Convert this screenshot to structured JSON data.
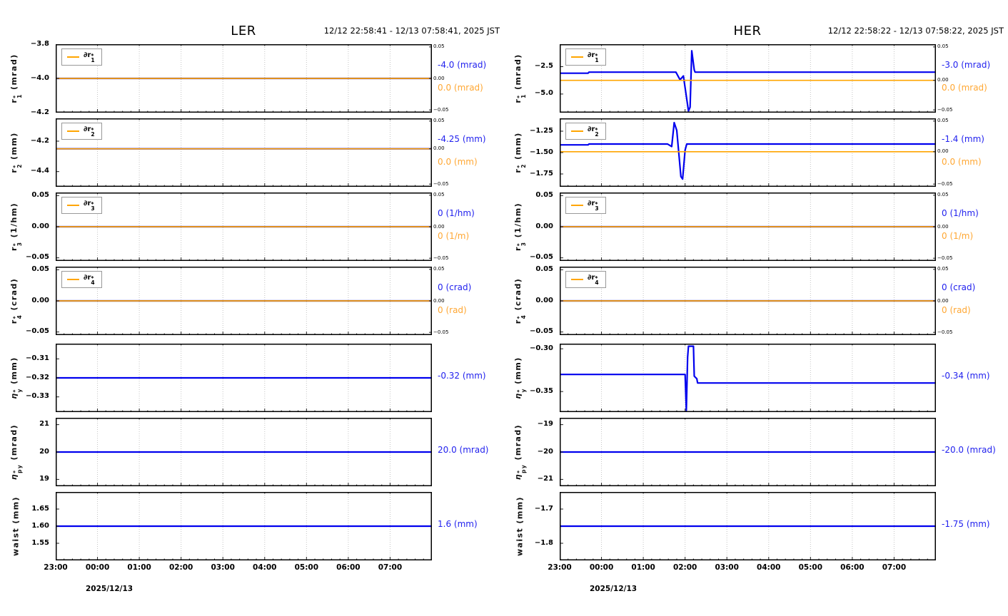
{
  "page": {
    "background": "#ffffff"
  },
  "colors": {
    "blue_line": "#0000ee",
    "orange_line": "#ffa500",
    "blue_label": "#2222ee",
    "orange_label": "#ffa733",
    "grid": "#c4c4c4",
    "frame": "#000000",
    "tick": "#222222"
  },
  "chart_data": [
    {
      "type": "line",
      "ring": "LER",
      "time_range": "12/12 22:58:41 - 12/13 07:58:41, 2025 JST",
      "date_label": "2025/12/13",
      "x_axis": {
        "hours_span": 9,
        "start_label": "23:00",
        "tick_labels": [
          "23:00",
          "00:00",
          "01:00",
          "02:00",
          "03:00",
          "04:00",
          "05:00",
          "06:00",
          "07:00"
        ],
        "minor_per_hour": 5,
        "grid": "vertical-dotted"
      },
      "panels": [
        {
          "id": "r1",
          "ylabel": [
            {
              "t": "r"
            },
            {
              "sup": "*",
              "sub": "1"
            },
            {
              "t": " (mrad)"
            }
          ],
          "legend": [
            {
              "t": "∂r"
            },
            {
              "sup": "*",
              "sub": "1"
            }
          ],
          "ylim": [
            -4.2,
            -3.8
          ],
          "yticks": [
            [
              "−3.8",
              -3.8
            ],
            [
              "−4.0",
              -4.0
            ],
            [
              "−4.2",
              -4.2
            ]
          ],
          "blue": [
            [
              0,
              -4.0
            ],
            [
              9,
              -4.0
            ]
          ],
          "orange_at": -4.0,
          "right_ticks": [
            "0.05",
            "0.00",
            "−0.05"
          ],
          "value_blue": "-4.0 (mrad)",
          "value_orange": "0.0 (mrad)"
        },
        {
          "id": "r2",
          "ylabel": [
            {
              "t": "r"
            },
            {
              "sup": "*",
              "sub": "2"
            },
            {
              "t": " (mm)"
            }
          ],
          "legend": [
            {
              "t": "∂r"
            },
            {
              "sup": "*",
              "sub": "2"
            }
          ],
          "ylim": [
            -4.5,
            -4.05
          ],
          "yticks": [
            [
              "−4.2",
              -4.2
            ],
            [
              "−4.4",
              -4.4
            ]
          ],
          "blue": [
            [
              0,
              -4.25
            ],
            [
              9,
              -4.25
            ]
          ],
          "orange_at": -4.25,
          "right_ticks": [
            "0.05",
            "0.00",
            "−0.05"
          ],
          "value_blue": "-4.25 (mm)",
          "value_orange": "0.0 (mm)"
        },
        {
          "id": "r3",
          "ylabel": [
            {
              "t": "r"
            },
            {
              "sup": "*",
              "sub": "3"
            },
            {
              "t": " (1/hm)"
            }
          ],
          "legend": [
            {
              "t": "∂r"
            },
            {
              "sup": "*",
              "sub": "3"
            }
          ],
          "ylim": [
            -0.055,
            0.055
          ],
          "yticks": [
            [
              "0.05",
              0.05
            ],
            [
              "0.00",
              0.0
            ],
            [
              "−0.05",
              -0.05
            ]
          ],
          "blue": [
            [
              0,
              0
            ],
            [
              9,
              0
            ]
          ],
          "orange_at": 0,
          "right_ticks": [
            "0.05",
            "0.00",
            "−0.05"
          ],
          "value_blue": "0 (1/hm)",
          "value_orange": "0 (1/m)"
        },
        {
          "id": "r4",
          "ylabel": [
            {
              "t": "r"
            },
            {
              "sup": "*",
              "sub": "4"
            },
            {
              "t": " (crad)"
            }
          ],
          "legend": [
            {
              "t": "∂r"
            },
            {
              "sup": "*",
              "sub": "4"
            }
          ],
          "ylim": [
            -0.055,
            0.055
          ],
          "yticks": [
            [
              "0.05",
              0.05
            ],
            [
              "0.00",
              0.0
            ],
            [
              "−0.05",
              -0.05
            ]
          ],
          "blue": [
            [
              0,
              0
            ],
            [
              9,
              0
            ]
          ],
          "orange_at": 0,
          "right_ticks": [
            "0.05",
            "0.00",
            "−0.05"
          ],
          "value_blue": "0 (crad)",
          "value_orange": "0 (rad)"
        },
        {
          "id": "etay",
          "ylabel": [
            {
              "t": "η",
              "i": true
            },
            {
              "sup": "*",
              "sub": "y"
            },
            {
              "t": " (mm)"
            }
          ],
          "legend": null,
          "ylim": [
            -0.338,
            -0.302
          ],
          "yticks": [
            [
              "−0.31",
              -0.31
            ],
            [
              "−0.32",
              -0.32
            ],
            [
              "−0.33",
              -0.33
            ]
          ],
          "blue": [
            [
              0,
              -0.32
            ],
            [
              9,
              -0.32
            ]
          ],
          "orange_at": null,
          "right_ticks": null,
          "value_blue": "-0.32 (mm)",
          "value_orange": null
        },
        {
          "id": "etapy",
          "ylabel": [
            {
              "t": "η",
              "i": true
            },
            {
              "sup": "*",
              "sub": "py"
            },
            {
              "t": " (mrad)"
            }
          ],
          "legend": null,
          "ylim": [
            18.75,
            21.25
          ],
          "yticks": [
            [
              "21",
              21
            ],
            [
              "20",
              20
            ],
            [
              "19",
              19
            ]
          ],
          "blue": [
            [
              0,
              20
            ],
            [
              9,
              20
            ]
          ],
          "orange_at": null,
          "right_ticks": null,
          "value_blue": "20.0 (mrad)",
          "value_orange": null
        },
        {
          "id": "waist",
          "ylabel": [
            {
              "t": "waist (mm)"
            }
          ],
          "legend": null,
          "ylim": [
            1.5,
            1.7
          ],
          "yticks": [
            [
              "1.65",
              1.65
            ],
            [
              "1.60",
              1.6
            ],
            [
              "1.55",
              1.55
            ]
          ],
          "blue": [
            [
              0,
              1.6
            ],
            [
              9,
              1.6
            ]
          ],
          "orange_at": null,
          "right_ticks": null,
          "value_blue": "1.6 (mm)",
          "value_orange": null
        }
      ]
    },
    {
      "type": "line",
      "ring": "HER",
      "time_range": "12/12 22:58:22 - 12/13 07:58:22, 2025 JST",
      "date_label": "2025/12/13",
      "x_axis": {
        "hours_span": 9,
        "start_label": "23:00",
        "tick_labels": [
          "23:00",
          "00:00",
          "01:00",
          "02:00",
          "03:00",
          "04:00",
          "05:00",
          "06:00",
          "07:00"
        ],
        "minor_per_hour": 5,
        "grid": "vertical-dotted"
      },
      "panels": [
        {
          "id": "r1",
          "ylabel": [
            {
              "t": "r"
            },
            {
              "sup": "*",
              "sub": "1"
            },
            {
              "t": " (mrad)"
            }
          ],
          "legend": [
            {
              "t": "∂r"
            },
            {
              "sup": "*",
              "sub": "1"
            }
          ],
          "ylim": [
            -6.7,
            -0.45
          ],
          "yticks": [
            [
              "−2.5",
              -2.5
            ],
            [
              "−5.0",
              -5.0
            ]
          ],
          "blue": [
            [
              0,
              -3.1
            ],
            [
              0.68,
              -3.1
            ],
            [
              0.7,
              -3.0
            ],
            [
              2.78,
              -3.0
            ],
            [
              2.88,
              -3.7
            ],
            [
              2.96,
              -3.35
            ],
            [
              3.08,
              -6.55
            ],
            [
              3.12,
              -6.2
            ],
            [
              3.16,
              -1.05
            ],
            [
              3.22,
              -2.8
            ],
            [
              3.24,
              -3.0
            ],
            [
              9,
              -3.0
            ]
          ],
          "orange_at": -3.75,
          "right_ticks": [
            "0.05",
            "0.00",
            "−0.05"
          ],
          "value_blue": "-3.0 (mrad)",
          "value_orange": "0.0 (mrad)"
        },
        {
          "id": "r2",
          "ylabel": [
            {
              "t": "r"
            },
            {
              "sup": "*",
              "sub": "2"
            },
            {
              "t": " (mm)"
            }
          ],
          "legend": [
            {
              "t": "∂r"
            },
            {
              "sup": "*",
              "sub": "2"
            }
          ],
          "ylim": [
            -1.9,
            -1.1
          ],
          "yticks": [
            [
              "−1.25",
              -1.25
            ],
            [
              "−1.50",
              -1.5
            ],
            [
              "−1.75",
              -1.75
            ]
          ],
          "blue": [
            [
              0,
              -1.41
            ],
            [
              0.68,
              -1.41
            ],
            [
              0.7,
              -1.4
            ],
            [
              2.58,
              -1.4
            ],
            [
              2.68,
              -1.43
            ],
            [
              2.74,
              -1.15
            ],
            [
              2.8,
              -1.24
            ],
            [
              2.9,
              -1.78
            ],
            [
              2.94,
              -1.81
            ],
            [
              3.0,
              -1.47
            ],
            [
              3.04,
              -1.4
            ],
            [
              9,
              -1.4
            ]
          ],
          "orange_at": -1.49,
          "right_ticks": [
            "0.05",
            "0.00",
            "−0.05"
          ],
          "value_blue": "-1.4 (mm)",
          "value_orange": "0.0 (mm)"
        },
        {
          "id": "r3",
          "ylabel": [
            {
              "t": "r"
            },
            {
              "sup": "*",
              "sub": "3"
            },
            {
              "t": " (1/hm)"
            }
          ],
          "legend": [
            {
              "t": "∂r"
            },
            {
              "sup": "*",
              "sub": "3"
            }
          ],
          "ylim": [
            -0.055,
            0.055
          ],
          "yticks": [
            [
              "0.05",
              0.05
            ],
            [
              "0.00",
              0.0
            ],
            [
              "−0.05",
              -0.05
            ]
          ],
          "blue": [
            [
              0,
              0
            ],
            [
              9,
              0
            ]
          ],
          "orange_at": 0,
          "right_ticks": [
            "0.05",
            "0.00",
            "−0.05"
          ],
          "value_blue": "0 (1/hm)",
          "value_orange": "0 (1/m)"
        },
        {
          "id": "r4",
          "ylabel": [
            {
              "t": "r"
            },
            {
              "sup": "*",
              "sub": "4"
            },
            {
              "t": " (crad)"
            }
          ],
          "legend": [
            {
              "t": "∂r"
            },
            {
              "sup": "*",
              "sub": "4"
            }
          ],
          "ylim": [
            -0.055,
            0.055
          ],
          "yticks": [
            [
              "0.05",
              0.05
            ],
            [
              "0.00",
              0.0
            ],
            [
              "−0.05",
              -0.05
            ]
          ],
          "blue": [
            [
              0,
              0
            ],
            [
              9,
              0
            ]
          ],
          "orange_at": 0,
          "right_ticks": [
            "0.05",
            "0.00",
            "−0.05"
          ],
          "value_blue": "0 (crad)",
          "value_orange": "0 (rad)"
        },
        {
          "id": "etay",
          "ylabel": [
            {
              "t": "η",
              "i": true
            },
            {
              "sup": "*",
              "sub": "y"
            },
            {
              "t": " (mm)"
            }
          ],
          "legend": null,
          "ylim": [
            -0.374,
            -0.294
          ],
          "yticks": [
            [
              "−0.30",
              -0.3
            ],
            [
              "−0.35",
              -0.35
            ]
          ],
          "blue": [
            [
              0,
              -0.33
            ],
            [
              3.0,
              -0.33
            ],
            [
              3.03,
              -0.372
            ],
            [
              3.06,
              -0.31
            ],
            [
              3.08,
              -0.297
            ],
            [
              3.2,
              -0.297
            ],
            [
              3.22,
              -0.332
            ],
            [
              3.28,
              -0.335
            ],
            [
              3.3,
              -0.34
            ],
            [
              9,
              -0.34
            ]
          ],
          "orange_at": null,
          "right_ticks": null,
          "value_blue": "-0.34 (mm)",
          "value_orange": null
        },
        {
          "id": "etapy",
          "ylabel": [
            {
              "t": "η",
              "i": true
            },
            {
              "sup": "*",
              "sub": "py"
            },
            {
              "t": " (mrad)"
            }
          ],
          "legend": null,
          "ylim": [
            -21.25,
            -18.75
          ],
          "yticks": [
            [
              "−19",
              -19
            ],
            [
              "−20",
              -20
            ],
            [
              "−21",
              -21
            ]
          ],
          "blue": [
            [
              0,
              -20
            ],
            [
              9,
              -20
            ]
          ],
          "orange_at": null,
          "right_ticks": null,
          "value_blue": "-20.0 (mrad)",
          "value_orange": null
        },
        {
          "id": "waist",
          "ylabel": [
            {
              "t": "waist (mm)"
            }
          ],
          "legend": null,
          "ylim": [
            -1.85,
            -1.65
          ],
          "yticks": [
            [
              "−1.7",
              -1.7
            ],
            [
              "−1.8",
              -1.8
            ]
          ],
          "blue": [
            [
              0,
              -1.75
            ],
            [
              9,
              -1.75
            ]
          ],
          "orange_at": null,
          "right_ticks": null,
          "value_blue": "-1.75 (mm)",
          "value_orange": null
        }
      ]
    }
  ]
}
